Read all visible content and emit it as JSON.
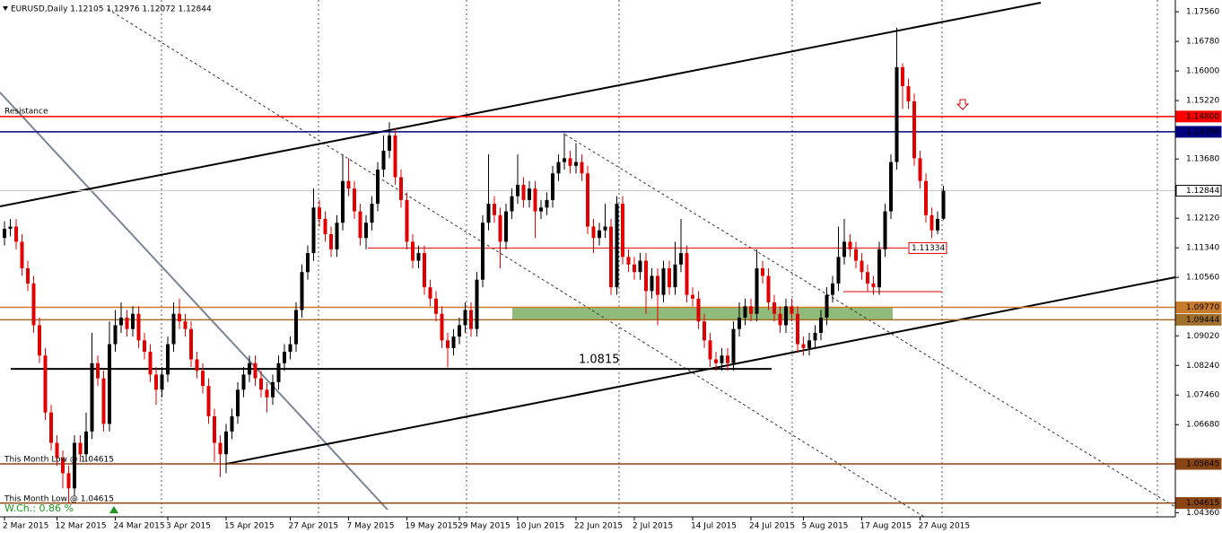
{
  "chart_data": {
    "type": "candlestick",
    "title": "EURUSD,Daily  1.12105 1.12976 1.12072 1.12844",
    "bull_color": "#000000",
    "bear_color": "#e00000",
    "xlim": [
      -0.77,
      200.77
    ],
    "ylim": [
      1.0425,
      1.1787
    ],
    "yticks": [
      {
        "value": 1.1756,
        "label": "1.17560"
      },
      {
        "value": 1.1678,
        "label": "1.16780"
      },
      {
        "value": 1.16,
        "label": "1.16000"
      },
      {
        "value": 1.1522,
        "label": "1.15220"
      },
      {
        "value": 1.1368,
        "label": "1.13680"
      },
      {
        "value": 1.1212,
        "label": "1.12120"
      },
      {
        "value": 1.1134,
        "label": "1.11340"
      },
      {
        "value": 1.1056,
        "label": "1.10560"
      },
      {
        "value": 1.0902,
        "label": "1.09020"
      },
      {
        "value": 1.0824,
        "label": "1.08240"
      },
      {
        "value": 1.0746,
        "label": "1.07460"
      },
      {
        "value": 1.0668,
        "label": "1.06680"
      },
      {
        "value": 1.0436,
        "label": "1.04360"
      }
    ],
    "xticks": [
      {
        "value": 0,
        "label": "2 Mar 2015"
      },
      {
        "value": 9,
        "label": "12 Mar 2015"
      },
      {
        "value": 19,
        "label": "24 Mar 2015"
      },
      {
        "value": 28,
        "label": "3 Apr 2015"
      },
      {
        "value": 38,
        "label": "15 Apr 2015"
      },
      {
        "value": 49,
        "label": "27 Apr 2015"
      },
      {
        "value": 59,
        "label": "7 May 2015"
      },
      {
        "value": 69,
        "label": "19 May 2015"
      },
      {
        "value": 78,
        "label": "29 May 2015"
      },
      {
        "value": 88,
        "label": "10 Jun 2015"
      },
      {
        "value": 98,
        "label": "22 Jun 2015"
      },
      {
        "value": 108,
        "label": "2 Jul 2015"
      },
      {
        "value": 118,
        "label": "14 Jul 2015"
      },
      {
        "value": 128,
        "label": "24 Jul 2015"
      },
      {
        "value": 137,
        "label": "5 Aug 2015"
      },
      {
        "value": 147,
        "label": "17 Aug 2015"
      },
      {
        "value": 157,
        "label": "27 Aug 2015"
      }
    ],
    "levels": [
      {
        "value": 1.148,
        "label": "1.14800",
        "color": "#ff0000",
        "fill": "#ff0000",
        "text_color": "#ffffff"
      },
      {
        "value": 1.14396,
        "label": "1.14396",
        "color": "#000080",
        "fill": "#000080",
        "text_color": "#ffffff"
      },
      {
        "value": 1.12844,
        "label": "1.12844",
        "color": "#c8c8c8",
        "fill": "#ffffff",
        "text_color": "#000000"
      },
      {
        "value": 1.0977,
        "label": "1.09770",
        "color": "#c87b2a",
        "fill": "#c87b2a",
        "text_color": "#ffffff"
      },
      {
        "value": 1.09444,
        "label": "1.09444",
        "color": "#a0702a",
        "fill": "#a0702a",
        "text_color": "#ffffff"
      },
      {
        "value": 1.05645,
        "label": "1.05645",
        "color": "#8b4513",
        "fill": "#8b4513",
        "text_color": "#ffffff"
      },
      {
        "value": 1.04615,
        "label": "1.04615",
        "color": "#8b4513",
        "fill": "#8b4513",
        "text_color": "#ffffff"
      }
    ],
    "price_tag": {
      "value": 1.11334,
      "label": "1.11334"
    },
    "support_level": 1.0815,
    "annotations": {
      "resistance": "Resistance",
      "month_low_1": "This Month Low @ 1.04615",
      "month_low_2": "This Month Low @ 1.04615",
      "weekly_change": "W.Ch.: 0.86 %"
    },
    "candles": [
      [
        1.116,
        1.1204,
        1.114,
        1.1184
      ],
      [
        1.1184,
        1.121,
        1.1164,
        1.119
      ],
      [
        1.119,
        1.121,
        1.113,
        1.115
      ],
      [
        1.115,
        1.117,
        1.106,
        1.108
      ],
      [
        1.108,
        1.11,
        1.102,
        1.104
      ],
      [
        1.104,
        1.106,
        1.091,
        1.093
      ],
      [
        1.093,
        1.095,
        1.083,
        1.085
      ],
      [
        1.085,
        1.087,
        1.068,
        1.07
      ],
      [
        1.07,
        1.072,
        1.06,
        1.062
      ],
      [
        1.062,
        1.064,
        1.056,
        1.058
      ],
      [
        1.058,
        1.06,
        1.05,
        1.054
      ],
      [
        1.054,
        1.056,
        1.0462,
        1.05
      ],
      [
        1.05,
        1.064,
        1.048,
        1.062
      ],
      [
        1.062,
        1.064,
        1.057,
        1.059
      ],
      [
        1.059,
        1.07,
        1.057,
        1.065
      ],
      [
        1.065,
        1.091,
        1.063,
        1.083
      ],
      [
        1.083,
        1.085,
        1.077,
        1.079
      ],
      [
        1.079,
        1.081,
        1.065,
        1.067
      ],
      [
        1.067,
        1.094,
        1.065,
        1.088
      ],
      [
        1.088,
        1.097,
        1.086,
        1.093
      ],
      [
        1.093,
        1.099,
        1.091,
        1.095
      ],
      [
        1.095,
        1.097,
        1.09,
        1.092
      ],
      [
        1.092,
        1.098,
        1.09,
        1.096
      ],
      [
        1.096,
        1.098,
        1.087,
        1.089
      ],
      [
        1.089,
        1.091,
        1.084,
        1.086
      ],
      [
        1.086,
        1.088,
        1.078,
        1.08
      ],
      [
        1.08,
        1.082,
        1.072,
        1.076
      ],
      [
        1.076,
        1.082,
        1.074,
        1.08
      ],
      [
        1.08,
        1.09,
        1.078,
        1.088
      ],
      [
        1.088,
        1.099,
        1.086,
        1.096
      ],
      [
        1.096,
        1.1,
        1.092,
        1.094
      ],
      [
        1.094,
        1.096,
        1.09,
        1.092
      ],
      [
        1.092,
        1.094,
        1.082,
        1.084
      ],
      [
        1.084,
        1.086,
        1.079,
        1.081
      ],
      [
        1.081,
        1.083,
        1.075,
        1.077
      ],
      [
        1.077,
        1.079,
        1.067,
        1.069
      ],
      [
        1.069,
        1.071,
        1.057,
        1.062
      ],
      [
        1.062,
        1.064,
        1.053,
        1.059
      ],
      [
        1.059,
        1.067,
        1.054,
        1.065
      ],
      [
        1.065,
        1.071,
        1.063,
        1.069
      ],
      [
        1.069,
        1.078,
        1.067,
        1.076
      ],
      [
        1.076,
        1.082,
        1.074,
        1.08
      ],
      [
        1.08,
        1.085,
        1.078,
        1.083
      ],
      [
        1.083,
        1.085,
        1.077,
        1.079
      ],
      [
        1.079,
        1.081,
        1.074,
        1.076
      ],
      [
        1.076,
        1.078,
        1.07,
        1.074
      ],
      [
        1.074,
        1.08,
        1.072,
        1.078
      ],
      [
        1.078,
        1.085,
        1.076,
        1.083
      ],
      [
        1.083,
        1.088,
        1.081,
        1.086
      ],
      [
        1.086,
        1.09,
        1.084,
        1.088
      ],
      [
        1.088,
        1.099,
        1.086,
        1.097
      ],
      [
        1.097,
        1.109,
        1.095,
        1.107
      ],
      [
        1.107,
        1.114,
        1.105,
        1.112
      ],
      [
        1.112,
        1.129,
        1.11,
        1.124
      ],
      [
        1.124,
        1.126,
        1.119,
        1.121
      ],
      [
        1.121,
        1.123,
        1.115,
        1.117
      ],
      [
        1.117,
        1.119,
        1.111,
        1.113
      ],
      [
        1.113,
        1.122,
        1.111,
        1.12
      ],
      [
        1.12,
        1.138,
        1.118,
        1.131
      ],
      [
        1.131,
        1.137,
        1.127,
        1.129
      ],
      [
        1.129,
        1.131,
        1.121,
        1.123
      ],
      [
        1.123,
        1.125,
        1.114,
        1.116
      ],
      [
        1.116,
        1.122,
        1.113,
        1.12
      ],
      [
        1.12,
        1.127,
        1.118,
        1.125
      ],
      [
        1.125,
        1.136,
        1.123,
        1.134
      ],
      [
        1.134,
        1.143,
        1.132,
        1.139
      ],
      [
        1.139,
        1.1465,
        1.137,
        1.143
      ],
      [
        1.143,
        1.145,
        1.13,
        1.132
      ],
      [
        1.132,
        1.134,
        1.124,
        1.126
      ],
      [
        1.126,
        1.128,
        1.113,
        1.115
      ],
      [
        1.115,
        1.117,
        1.108,
        1.11
      ],
      [
        1.11,
        1.114,
        1.108,
        1.112
      ],
      [
        1.112,
        1.114,
        1.101,
        1.103
      ],
      [
        1.103,
        1.105,
        1.098,
        1.1
      ],
      [
        1.1,
        1.102,
        1.094,
        1.096
      ],
      [
        1.096,
        1.098,
        1.087,
        1.089
      ],
      [
        1.089,
        1.091,
        1.0819,
        1.087
      ],
      [
        1.087,
        1.092,
        1.085,
        1.09
      ],
      [
        1.09,
        1.095,
        1.088,
        1.093
      ],
      [
        1.093,
        1.099,
        1.091,
        1.097
      ],
      [
        1.097,
        1.099,
        1.09,
        1.092
      ],
      [
        1.092,
        1.107,
        1.09,
        1.105
      ],
      [
        1.105,
        1.122,
        1.103,
        1.12
      ],
      [
        1.12,
        1.138,
        1.118,
        1.125
      ],
      [
        1.125,
        1.127,
        1.12,
        1.122
      ],
      [
        1.122,
        1.124,
        1.108,
        1.115
      ],
      [
        1.115,
        1.125,
        1.113,
        1.123
      ],
      [
        1.123,
        1.129,
        1.121,
        1.127
      ],
      [
        1.127,
        1.138,
        1.125,
        1.13
      ],
      [
        1.13,
        1.132,
        1.124,
        1.126
      ],
      [
        1.126,
        1.131,
        1.124,
        1.129
      ],
      [
        1.129,
        1.131,
        1.116,
        1.123
      ],
      [
        1.123,
        1.126,
        1.121,
        1.124
      ],
      [
        1.124,
        1.128,
        1.122,
        1.126
      ],
      [
        1.126,
        1.135,
        1.124,
        1.133
      ],
      [
        1.133,
        1.138,
        1.131,
        1.136
      ],
      [
        1.136,
        1.1436,
        1.134,
        1.137
      ],
      [
        1.137,
        1.139,
        1.133,
        1.135
      ],
      [
        1.135,
        1.141,
        1.133,
        1.136
      ],
      [
        1.136,
        1.138,
        1.131,
        1.133
      ],
      [
        1.133,
        1.135,
        1.117,
        1.119
      ],
      [
        1.119,
        1.121,
        1.112,
        1.116
      ],
      [
        1.116,
        1.12,
        1.114,
        1.118
      ],
      [
        1.118,
        1.125,
        1.116,
        1.119
      ],
      [
        1.119,
        1.121,
        1.101,
        1.103
      ],
      [
        1.103,
        1.127,
        1.101,
        1.125
      ],
      [
        1.125,
        1.127,
        1.109,
        1.111
      ],
      [
        1.111,
        1.113,
        1.107,
        1.109
      ],
      [
        1.109,
        1.111,
        1.105,
        1.107
      ],
      [
        1.107,
        1.112,
        1.105,
        1.11
      ],
      [
        1.11,
        1.112,
        1.096,
        1.102
      ],
      [
        1.102,
        1.108,
        1.1,
        1.106
      ],
      [
        1.106,
        1.108,
        1.093,
        1.101
      ],
      [
        1.101,
        1.11,
        1.099,
        1.108
      ],
      [
        1.108,
        1.11,
        1.101,
        1.103
      ],
      [
        1.103,
        1.115,
        1.101,
        1.109
      ],
      [
        1.109,
        1.121,
        1.107,
        1.112
      ],
      [
        1.112,
        1.114,
        1.099,
        1.101
      ],
      [
        1.101,
        1.103,
        1.098,
        1.1
      ],
      [
        1.1,
        1.102,
        1.092,
        1.094
      ],
      [
        1.094,
        1.096,
        1.087,
        1.089
      ],
      [
        1.089,
        1.091,
        1.082,
        1.084
      ],
      [
        1.084,
        1.086,
        1.081,
        1.083
      ],
      [
        1.083,
        1.087,
        1.081,
        1.085
      ],
      [
        1.085,
        1.087,
        1.081,
        1.083
      ],
      [
        1.083,
        1.094,
        1.081,
        1.092
      ],
      [
        1.092,
        1.099,
        1.09,
        1.095
      ],
      [
        1.095,
        1.1,
        1.093,
        1.098
      ],
      [
        1.098,
        1.1,
        1.094,
        1.096
      ],
      [
        1.096,
        1.113,
        1.094,
        1.108
      ],
      [
        1.108,
        1.11,
        1.104,
        1.106
      ],
      [
        1.106,
        1.108,
        1.097,
        1.099
      ],
      [
        1.099,
        1.101,
        1.094,
        1.096
      ],
      [
        1.096,
        1.098,
        1.091,
        1.093
      ],
      [
        1.093,
        1.1,
        1.091,
        1.098
      ],
      [
        1.098,
        1.1,
        1.094,
        1.096
      ],
      [
        1.096,
        1.098,
        1.086,
        1.088
      ],
      [
        1.088,
        1.09,
        1.085,
        1.087
      ],
      [
        1.087,
        1.091,
        1.085,
        1.089
      ],
      [
        1.089,
        1.093,
        1.087,
        1.091
      ],
      [
        1.091,
        1.097,
        1.089,
        1.095
      ],
      [
        1.095,
        1.103,
        1.093,
        1.101
      ],
      [
        1.101,
        1.106,
        1.099,
        1.104
      ],
      [
        1.104,
        1.119,
        1.102,
        1.111
      ],
      [
        1.111,
        1.121,
        1.109,
        1.115
      ],
      [
        1.115,
        1.117,
        1.111,
        1.113
      ],
      [
        1.113,
        1.115,
        1.108,
        1.11
      ],
      [
        1.11,
        1.112,
        1.105,
        1.107
      ],
      [
        1.107,
        1.109,
        1.102,
        1.104
      ],
      [
        1.104,
        1.106,
        1.101,
        1.103
      ],
      [
        1.103,
        1.115,
        1.101,
        1.113
      ],
      [
        1.113,
        1.125,
        1.111,
        1.123
      ],
      [
        1.123,
        1.138,
        1.121,
        1.136
      ],
      [
        1.136,
        1.1714,
        1.134,
        1.161
      ],
      [
        1.161,
        1.162,
        1.15,
        1.156
      ],
      [
        1.156,
        1.158,
        1.15,
        1.152
      ],
      [
        1.152,
        1.154,
        1.135,
        1.137
      ],
      [
        1.137,
        1.139,
        1.129,
        1.131
      ],
      [
        1.131,
        1.133,
        1.12,
        1.122
      ],
      [
        1.122,
        1.124,
        1.116,
        1.118
      ],
      [
        1.118,
        1.123,
        1.117,
        1.121
      ],
      [
        1.12105,
        1.12976,
        1.12072,
        1.12844
      ]
    ]
  }
}
